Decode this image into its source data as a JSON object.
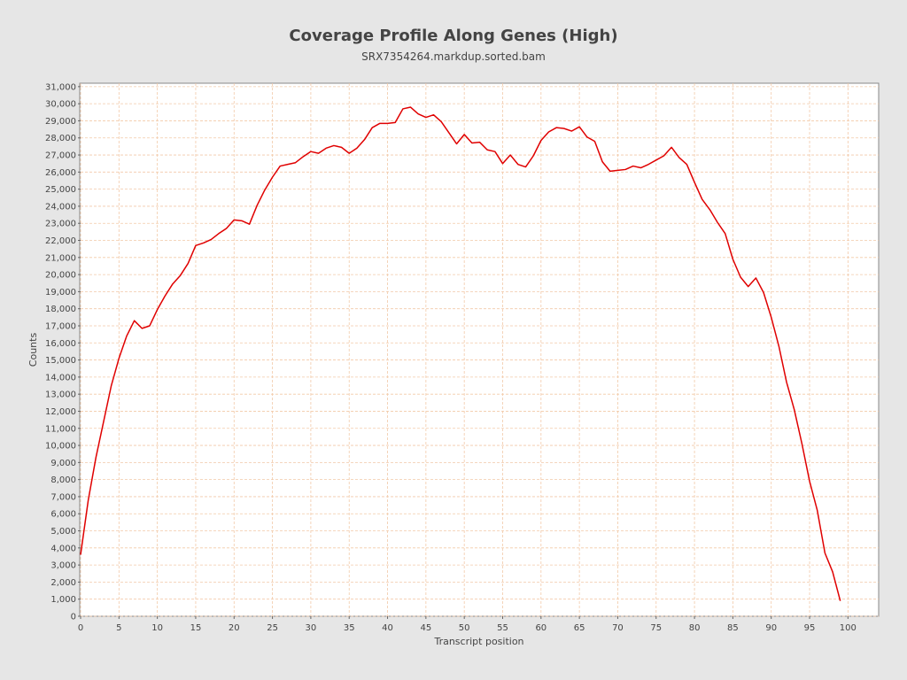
{
  "chart_data": {
    "type": "line",
    "title": "Coverage Profile Along Genes (High)",
    "subtitle": "SRX7354264.markdup.sorted.bam",
    "xlabel": "Transcript position",
    "ylabel": "Counts",
    "xlim": [
      0,
      104
    ],
    "ylim": [
      0,
      31200
    ],
    "x_ticks": [
      0,
      5,
      10,
      15,
      20,
      25,
      30,
      35,
      40,
      45,
      50,
      55,
      60,
      65,
      70,
      75,
      80,
      85,
      90,
      95,
      100
    ],
    "y_ticks": [
      0,
      1000,
      2000,
      3000,
      4000,
      5000,
      6000,
      7000,
      8000,
      9000,
      10000,
      11000,
      12000,
      13000,
      14000,
      15000,
      16000,
      17000,
      18000,
      19000,
      20000,
      21000,
      22000,
      23000,
      24000,
      25000,
      26000,
      27000,
      28000,
      29000,
      30000,
      31000
    ],
    "y_tick_labels": [
      "0",
      "1,000",
      "2,000",
      "3,000",
      "4,000",
      "5,000",
      "6,000",
      "7,000",
      "8,000",
      "9,000",
      "10,000",
      "11,000",
      "12,000",
      "13,000",
      "14,000",
      "15,000",
      "16,000",
      "17,000",
      "18,000",
      "19,000",
      "20,000",
      "21,000",
      "22,000",
      "23,000",
      "24,000",
      "25,000",
      "26,000",
      "27,000",
      "28,000",
      "29,000",
      "30,000",
      "31,000"
    ],
    "grid": true,
    "colors": {
      "line": "#e00000",
      "grid": "#f2c9a8",
      "plot_bg": "#ffffff",
      "page_bg": "#e6e6e6"
    },
    "series": [
      {
        "x": [
          0,
          1,
          2,
          3,
          4,
          5,
          6,
          7,
          8,
          9,
          10,
          11,
          12,
          13,
          14,
          15,
          16,
          17,
          18,
          19,
          20,
          21,
          22,
          23,
          24,
          25,
          26,
          27,
          28,
          29,
          30,
          31,
          32,
          33,
          34,
          35,
          36,
          37,
          38,
          39,
          40,
          41,
          42,
          43,
          44,
          45,
          46,
          47,
          48,
          49,
          50,
          51,
          52,
          53,
          54,
          55,
          56,
          57,
          58,
          59,
          60,
          61,
          62,
          63,
          64,
          65,
          66,
          67,
          68,
          69,
          70,
          71,
          72,
          73,
          74,
          75,
          76,
          77,
          78,
          79,
          80,
          81,
          82,
          83,
          84,
          85,
          86,
          87,
          88,
          89,
          90,
          91,
          92,
          93,
          94,
          95,
          96,
          97,
          98,
          99
        ],
        "values": [
          3600,
          6800,
          9300,
          11400,
          13500,
          15100,
          16400,
          17300,
          16850,
          17000,
          17950,
          18750,
          19450,
          19950,
          20650,
          21700,
          21850,
          22050,
          22400,
          22700,
          23200,
          23150,
          22950,
          24050,
          24950,
          25700,
          26350,
          26450,
          26550,
          26900,
          27200,
          27100,
          27400,
          27550,
          27450,
          27100,
          27400,
          27900,
          28600,
          28850,
          28850,
          28900,
          29700,
          29800,
          29400,
          29200,
          29350,
          28950,
          28300,
          27650,
          28200,
          27700,
          27750,
          27300,
          27200,
          26500,
          27000,
          26450,
          26300,
          26950,
          27850,
          28350,
          28600,
          28550,
          28400,
          28650,
          28050,
          27800,
          26600,
          26050,
          26100,
          26150,
          26350,
          26250,
          26450,
          26700,
          26950,
          27450,
          26850,
          26450,
          25400,
          24400,
          23800,
          23050,
          22400,
          20900,
          19850,
          19300,
          19800,
          18950,
          17500,
          15800,
          13700,
          12100,
          10100,
          7900,
          6200,
          3700,
          2600,
          900
        ]
      }
    ]
  }
}
